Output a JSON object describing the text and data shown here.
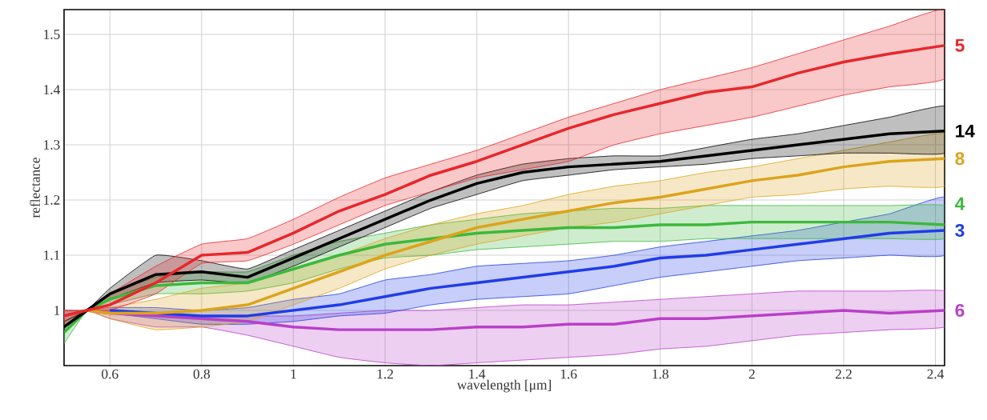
{
  "chart_data": {
    "type": "line",
    "xlabel": "wavelength [μm]",
    "ylabel": "reflectance",
    "xlim": [
      0.5,
      2.42
    ],
    "ylim": [
      0.9,
      1.545
    ],
    "xticks": [
      0.6,
      0.8,
      1,
      1.2,
      1.4,
      1.6,
      1.8,
      2,
      2.2,
      2.4
    ],
    "yticks": [
      1,
      1.1,
      1.2,
      1.3,
      1.4,
      1.5
    ],
    "grid": true,
    "legend": false,
    "marker": "none",
    "line_style": "solid",
    "x": [
      0.5,
      0.55,
      0.6,
      0.7,
      0.8,
      0.9,
      1.0,
      1.1,
      1.2,
      1.3,
      1.4,
      1.5,
      1.6,
      1.7,
      1.8,
      1.9,
      2.0,
      2.1,
      2.2,
      2.3,
      2.42
    ],
    "series": [
      {
        "name": "6",
        "color": "#b93fc9",
        "values": [
          0.99,
          1.0,
          0.995,
          0.99,
          0.985,
          0.98,
          0.97,
          0.965,
          0.965,
          0.965,
          0.97,
          0.97,
          0.975,
          0.975,
          0.985,
          0.985,
          0.99,
          0.995,
          1.0,
          0.995,
          1.0
        ],
        "lower": [
          0.98,
          1.0,
          0.985,
          0.97,
          0.97,
          0.955,
          0.935,
          0.915,
          0.905,
          0.9,
          0.905,
          0.91,
          0.915,
          0.92,
          0.93,
          0.935,
          0.945,
          0.955,
          0.96,
          0.965,
          0.97
        ],
        "upper": [
          1.0,
          1.0,
          1.0,
          0.995,
          0.99,
          0.99,
          0.99,
          0.995,
          1.0,
          1.0,
          1.005,
          1.01,
          1.01,
          1.015,
          1.02,
          1.025,
          1.03,
          1.035,
          1.035,
          1.035,
          1.035
        ]
      },
      {
        "name": "3",
        "color": "#1f3ce8",
        "values": [
          null,
          null,
          1.0,
          0.995,
          0.99,
          0.99,
          1.0,
          1.01,
          1.025,
          1.04,
          1.05,
          1.06,
          1.07,
          1.08,
          1.095,
          1.1,
          1.11,
          1.12,
          1.13,
          1.14,
          1.145
        ],
        "lower": [
          0.98,
          1.0,
          0.995,
          0.985,
          0.975,
          0.975,
          0.98,
          0.99,
          0.995,
          1.01,
          1.02,
          1.025,
          1.03,
          1.045,
          1.06,
          1.07,
          1.08,
          1.09,
          1.095,
          1.1,
          1.1
        ],
        "upper": [
          1.0,
          1.0,
          1.005,
          1.005,
          1.0,
          1.005,
          1.02,
          1.03,
          1.055,
          1.065,
          1.08,
          1.085,
          1.09,
          1.1,
          1.115,
          1.125,
          1.135,
          1.145,
          1.16,
          1.175,
          1.205
        ]
      },
      {
        "name": "4",
        "color": "#3cb83c",
        "values": [
          0.96,
          1.0,
          1.02,
          1.045,
          1.05,
          1.05,
          1.075,
          1.1,
          1.12,
          1.13,
          1.14,
          1.145,
          1.15,
          1.15,
          1.155,
          1.155,
          1.16,
          1.16,
          1.16,
          1.16,
          1.155
        ],
        "lower": [
          0.94,
          1.0,
          1.01,
          1.03,
          1.03,
          1.035,
          1.05,
          1.075,
          1.095,
          1.1,
          1.11,
          1.115,
          1.12,
          1.125,
          1.125,
          1.13,
          1.13,
          1.13,
          1.13,
          1.13,
          1.13
        ],
        "upper": [
          0.98,
          1.0,
          1.03,
          1.06,
          1.07,
          1.07,
          1.1,
          1.125,
          1.14,
          1.155,
          1.165,
          1.175,
          1.18,
          1.185,
          1.185,
          1.19,
          1.19,
          1.19,
          1.19,
          1.19,
          1.19
        ]
      },
      {
        "name": "8",
        "color": "#dca41c",
        "values": [
          0.99,
          1.0,
          0.995,
          0.995,
          1.0,
          1.01,
          1.04,
          1.07,
          1.1,
          1.125,
          1.15,
          1.165,
          1.18,
          1.195,
          1.205,
          1.22,
          1.235,
          1.245,
          1.26,
          1.27,
          1.275
        ],
        "lower": [
          0.98,
          1.0,
          0.985,
          0.965,
          0.97,
          0.98,
          1.01,
          1.04,
          1.075,
          1.1,
          1.12,
          1.135,
          1.15,
          1.16,
          1.175,
          1.19,
          1.205,
          1.21,
          1.22,
          1.225,
          1.225
        ],
        "upper": [
          1.0,
          1.0,
          1.005,
          1.02,
          1.04,
          1.05,
          1.075,
          1.1,
          1.13,
          1.155,
          1.175,
          1.19,
          1.21,
          1.225,
          1.235,
          1.25,
          1.26,
          1.275,
          1.29,
          1.305,
          1.32
        ]
      },
      {
        "name": "14",
        "color": "#000000",
        "values": [
          0.97,
          1.0,
          1.03,
          1.065,
          1.07,
          1.06,
          1.095,
          1.13,
          1.165,
          1.2,
          1.23,
          1.25,
          1.26,
          1.265,
          1.27,
          1.28,
          1.29,
          1.3,
          1.31,
          1.32,
          1.325
        ],
        "lower": [
          0.96,
          1.0,
          1.02,
          1.05,
          1.055,
          1.05,
          1.08,
          1.115,
          1.15,
          1.185,
          1.21,
          1.235,
          1.245,
          1.255,
          1.26,
          1.265,
          1.275,
          1.28,
          1.285,
          1.285,
          1.285
        ],
        "upper": [
          0.98,
          1.0,
          1.04,
          1.1,
          1.09,
          1.075,
          1.11,
          1.145,
          1.18,
          1.215,
          1.245,
          1.265,
          1.275,
          1.28,
          1.28,
          1.295,
          1.31,
          1.32,
          1.335,
          1.35,
          1.37
        ]
      },
      {
        "name": "5",
        "color": "#e8262a",
        "values": [
          0.99,
          1.0,
          1.01,
          1.05,
          1.1,
          1.105,
          1.14,
          1.18,
          1.21,
          1.245,
          1.27,
          1.3,
          1.33,
          1.355,
          1.375,
          1.395,
          1.405,
          1.43,
          1.45,
          1.465,
          1.48
        ],
        "lower": [
          0.97,
          1.0,
          1.0,
          1.03,
          1.085,
          1.09,
          1.12,
          1.155,
          1.19,
          1.215,
          1.24,
          1.255,
          1.27,
          1.3,
          1.32,
          1.335,
          1.35,
          1.37,
          1.39,
          1.405,
          1.42
        ],
        "upper": [
          1.0,
          1.0,
          1.03,
          1.08,
          1.12,
          1.13,
          1.165,
          1.205,
          1.24,
          1.265,
          1.29,
          1.32,
          1.35,
          1.375,
          1.4,
          1.42,
          1.44,
          1.465,
          1.49,
          1.515,
          1.545
        ]
      }
    ]
  }
}
